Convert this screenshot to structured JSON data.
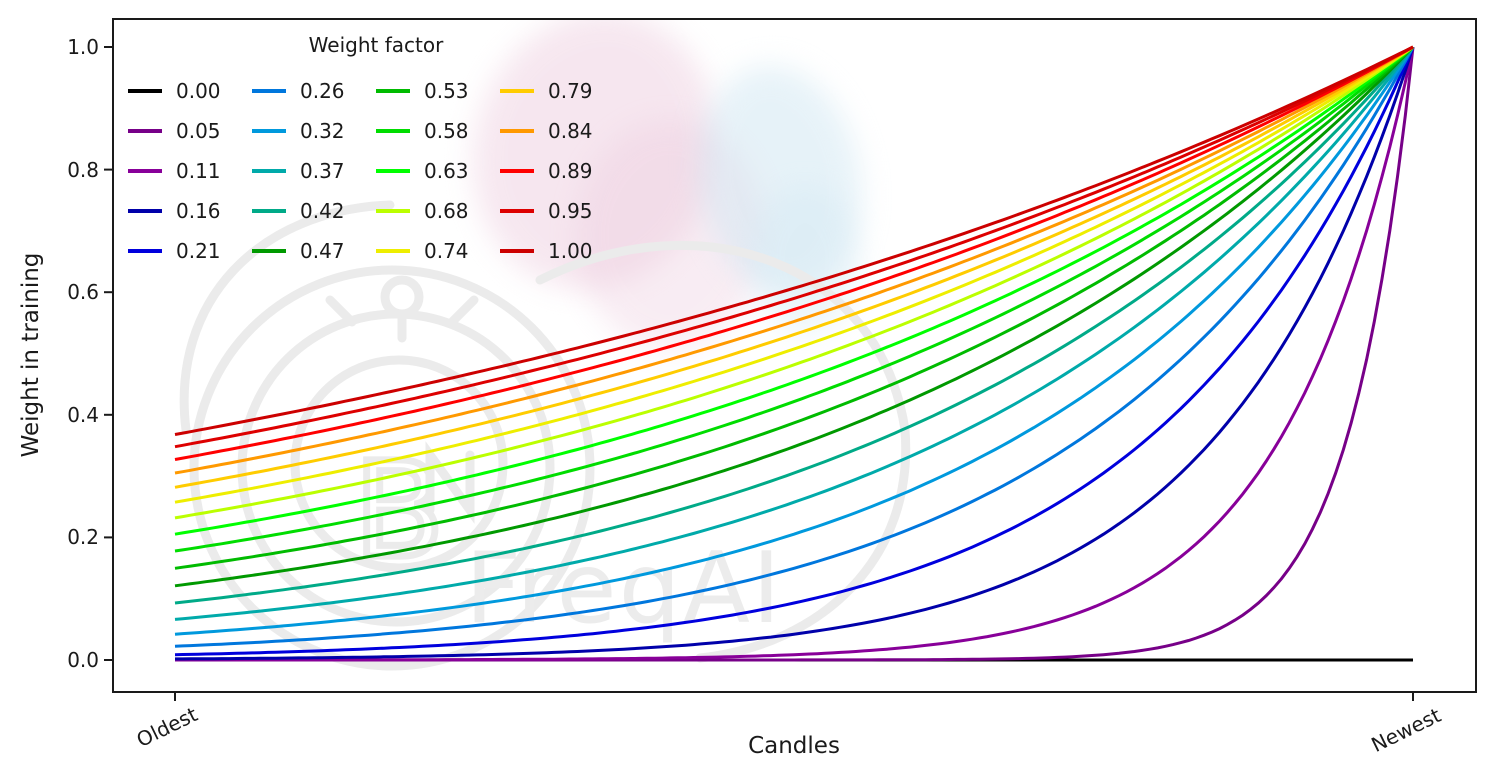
{
  "axes": {
    "ylabel": "Weight in training",
    "xlabel": "Candles",
    "ytick_labels": [
      "0.0",
      "0.2",
      "0.4",
      "0.6",
      "0.8",
      "1.0"
    ],
    "ytick_values": [
      0.0,
      0.2,
      0.4,
      0.6,
      0.8,
      1.0
    ],
    "xtick_labels": [
      "Oldest",
      "Newest"
    ],
    "spine_color": "#1a1a1a",
    "background_color": "#ffffff"
  },
  "legend": {
    "title": "Weight factor",
    "ncol": 4,
    "nrow": 5,
    "frame": false
  },
  "watermark": {
    "text": "FreqAI",
    "logo": "freqtrade-bird-stopwatch-logo",
    "text_color": "#ececec",
    "logo_color": "#ebebeb",
    "petal_pink_color": "#eccadd",
    "petal_blue_color": "#cfe6f2"
  },
  "chart_data": {
    "type": "line",
    "title": "",
    "xlabel": "Candles",
    "ylabel": "Weight in training",
    "xlim": [
      -0.05,
      1.05
    ],
    "ylim": [
      -0.05,
      1.05
    ],
    "yticks": [
      0.0,
      0.2,
      0.4,
      0.6,
      0.8,
      1.0
    ],
    "xtick_positions": [
      0.0,
      1.0
    ],
    "xtick_labels": [
      "Oldest",
      "Newest"
    ],
    "grid": false,
    "legend_title": "Weight factor",
    "legend_position": "upper-left",
    "legend_ncol": 4,
    "colormap": "nipy_spectral",
    "curve_formula": "weight(t) = exp(-(1 - t) / weight_factor), with t = 0 at oldest candle and t = 1 at newest candle; weight_factor = 0 gives weight 0 for all candles",
    "t_samples": [
      0.0,
      0.25,
      0.5,
      0.75,
      1.0
    ],
    "series": [
      {
        "label": "0.00",
        "weight_factor": 0.0,
        "color": "#000000",
        "values": [
          0.0,
          0.0,
          0.0,
          0.0,
          0.0
        ]
      },
      {
        "label": "0.05",
        "weight_factor": 0.0526,
        "color": "#770088",
        "values": [
          0.0,
          0.0,
          0.0001,
          0.009,
          1.0
        ]
      },
      {
        "label": "0.11",
        "weight_factor": 0.1053,
        "color": "#880099",
        "values": [
          0.0001,
          0.001,
          0.009,
          0.093,
          1.0
        ]
      },
      {
        "label": "0.16",
        "weight_factor": 0.1579,
        "color": "#0000aa",
        "values": [
          0.002,
          0.009,
          0.042,
          0.205,
          1.0
        ]
      },
      {
        "label": "0.21",
        "weight_factor": 0.2105,
        "color": "#0000dd",
        "values": [
          0.009,
          0.028,
          0.093,
          0.305,
          1.0
        ]
      },
      {
        "label": "0.26",
        "weight_factor": 0.2632,
        "color": "#0077dd",
        "values": [
          0.022,
          0.058,
          0.15,
          0.387,
          1.0
        ]
      },
      {
        "label": "0.32",
        "weight_factor": 0.3158,
        "color": "#0099dd",
        "values": [
          0.042,
          0.093,
          0.205,
          0.453,
          1.0
        ]
      },
      {
        "label": "0.37",
        "weight_factor": 0.3684,
        "color": "#00aaaa",
        "values": [
          0.066,
          0.131,
          0.257,
          0.507,
          1.0
        ]
      },
      {
        "label": "0.42",
        "weight_factor": 0.4211,
        "color": "#00aa88",
        "values": [
          0.093,
          0.168,
          0.305,
          0.552,
          1.0
        ]
      },
      {
        "label": "0.47",
        "weight_factor": 0.4737,
        "color": "#009900",
        "values": [
          0.121,
          0.205,
          0.348,
          0.59,
          1.0
        ]
      },
      {
        "label": "0.53",
        "weight_factor": 0.5263,
        "color": "#00bb00",
        "values": [
          0.15,
          0.241,
          0.387,
          0.622,
          1.0
        ]
      },
      {
        "label": "0.58",
        "weight_factor": 0.5789,
        "color": "#00dd00",
        "values": [
          0.178,
          0.274,
          0.422,
          0.649,
          1.0
        ]
      },
      {
        "label": "0.63",
        "weight_factor": 0.6316,
        "color": "#00ff00",
        "values": [
          0.205,
          0.305,
          0.453,
          0.673,
          1.0
        ]
      },
      {
        "label": "0.68",
        "weight_factor": 0.6842,
        "color": "#bbff00",
        "values": [
          0.232,
          0.334,
          0.482,
          0.694,
          1.0
        ]
      },
      {
        "label": "0.74",
        "weight_factor": 0.7368,
        "color": "#eeee00",
        "values": [
          0.257,
          0.361,
          0.507,
          0.712,
          1.0
        ]
      },
      {
        "label": "0.79",
        "weight_factor": 0.7895,
        "color": "#ffcc00",
        "values": [
          0.282,
          0.387,
          0.531,
          0.729,
          1.0
        ]
      },
      {
        "label": "0.84",
        "weight_factor": 0.8421,
        "color": "#ff9900",
        "values": [
          0.305,
          0.41,
          0.552,
          0.743,
          1.0
        ]
      },
      {
        "label": "0.89",
        "weight_factor": 0.8947,
        "color": "#ff0000",
        "values": [
          0.327,
          0.432,
          0.572,
          0.756,
          1.0
        ]
      },
      {
        "label": "0.95",
        "weight_factor": 0.9474,
        "color": "#dd0000",
        "values": [
          0.348,
          0.453,
          0.59,
          0.768,
          1.0
        ]
      },
      {
        "label": "1.00",
        "weight_factor": 1.0,
        "color": "#cc0000",
        "values": [
          0.368,
          0.472,
          0.607,
          0.779,
          1.0
        ]
      }
    ]
  }
}
